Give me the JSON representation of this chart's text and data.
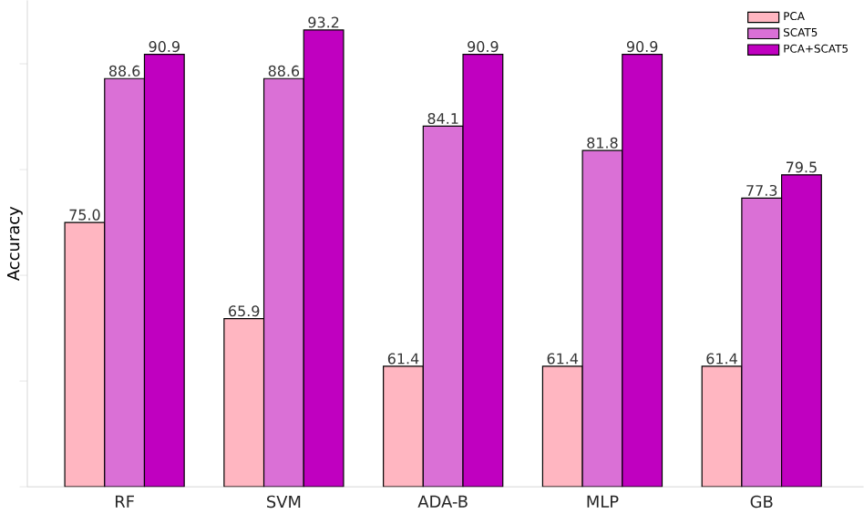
{
  "chart_data": {
    "type": "bar",
    "ylabel": "Accuracy",
    "categories": [
      "RF",
      "SVM",
      "ADA-B",
      "MLP",
      "GB"
    ],
    "series": [
      {
        "name": "PCA",
        "color": "#ffb6c1",
        "values": [
          75.0,
          65.9,
          61.4,
          61.4,
          61.4
        ],
        "value_labels": [
          "75.0",
          "65.9",
          "61.4",
          "61.4",
          "61.4"
        ]
      },
      {
        "name": "SCAT5",
        "color": "#da70d6",
        "values": [
          88.6,
          88.6,
          84.1,
          81.8,
          77.3
        ],
        "value_labels": [
          "88.6",
          "88.6",
          "84.1",
          "81.8",
          "77.3"
        ]
      },
      {
        "name": "PCA+SCAT5",
        "color": "#c000c0",
        "values": [
          90.9,
          93.2,
          90.9,
          90.9,
          79.5
        ],
        "value_labels": [
          "90.9",
          "93.2",
          "90.9",
          "90.9",
          "79.5"
        ]
      }
    ],
    "ylim": [
      50,
      96
    ],
    "yticks": [
      {
        "value": 50,
        "label": null
      },
      {
        "value": 60,
        "label": null
      },
      {
        "value": 70,
        "label": null
      },
      {
        "value": 80,
        "label": null
      },
      {
        "value": 90,
        "label": null
      }
    ],
    "tick_labels": "x",
    "legend": "top right",
    "grid": false
  }
}
